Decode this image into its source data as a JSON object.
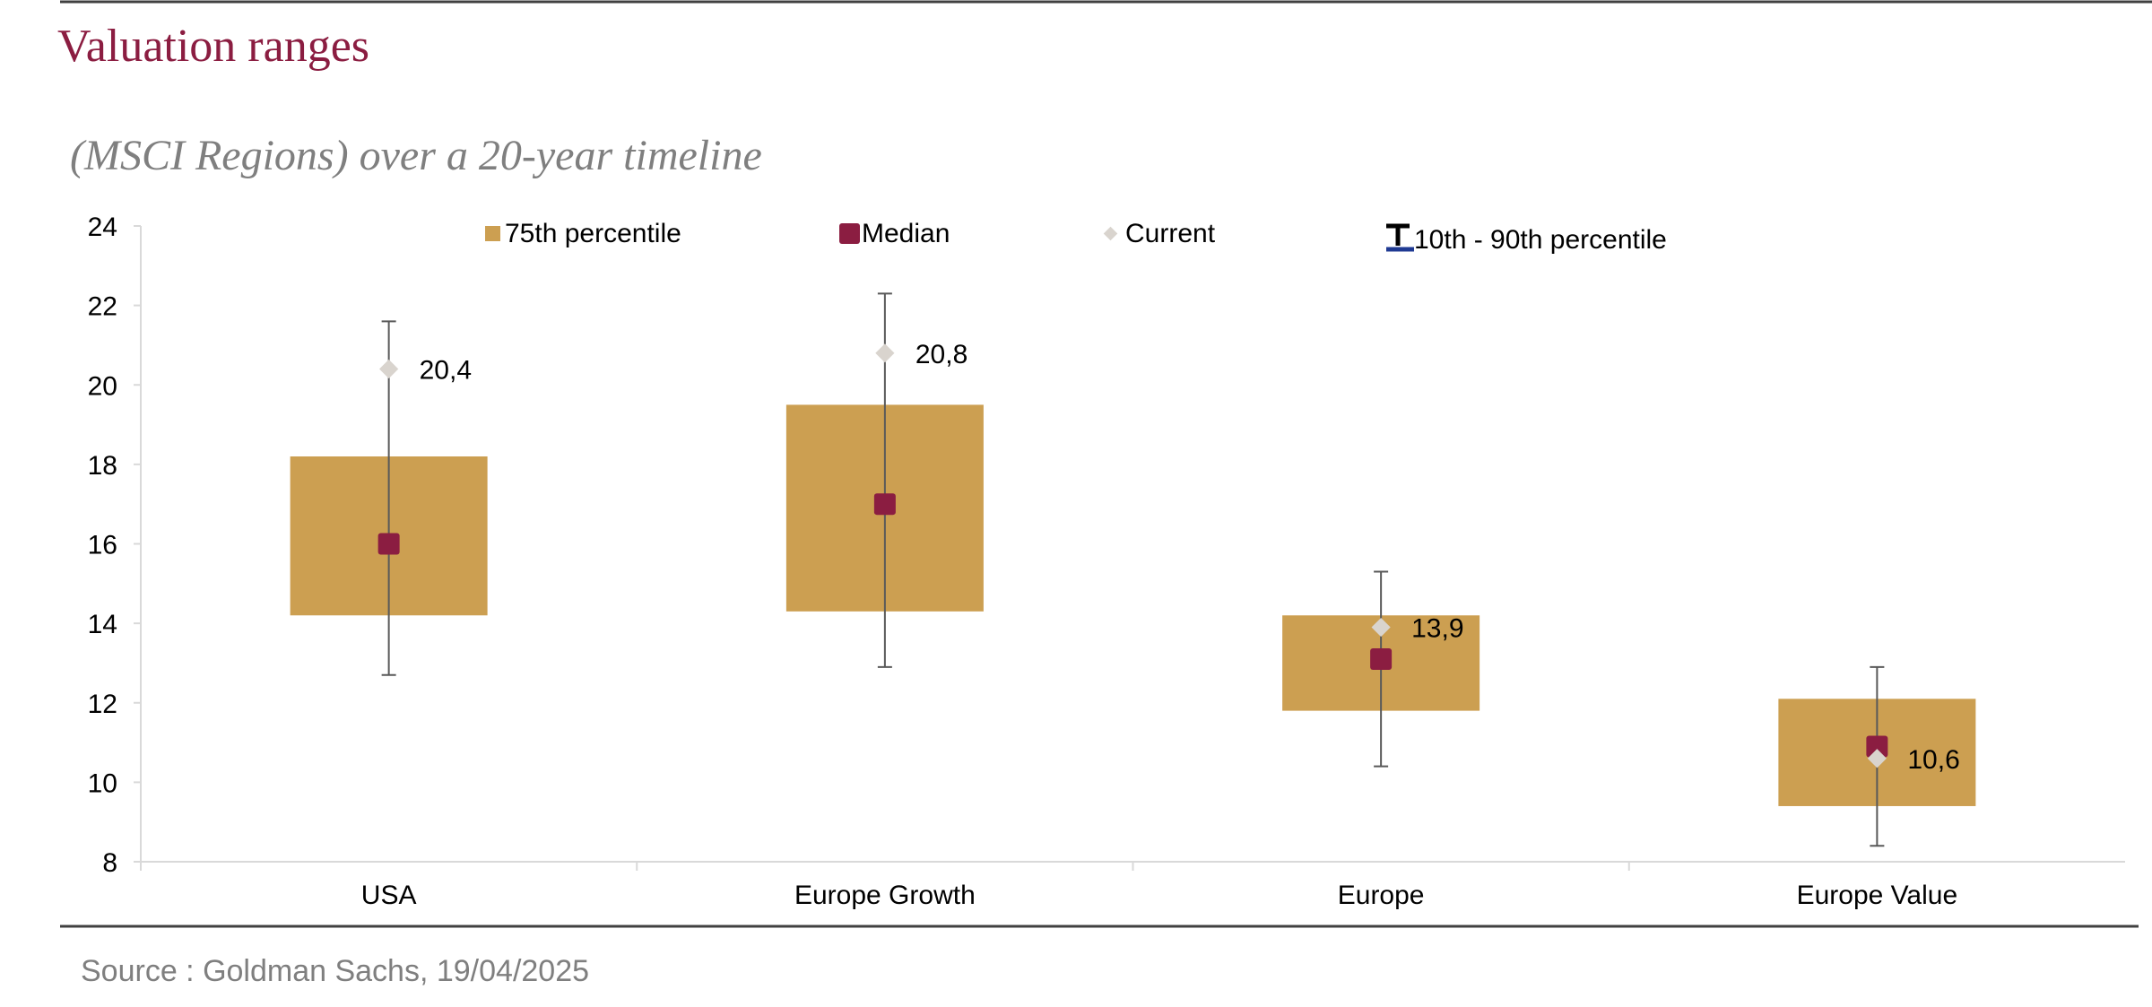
{
  "header": {
    "title": "Valuation ranges"
  },
  "chart_data": {
    "type": "box",
    "title": "",
    "subtitle": "(MSCI Regions) over a 20-year timeline",
    "xlabel": "",
    "ylabel": "",
    "categories": [
      "USA",
      "Europe Growth",
      "Europe",
      "Europe Value"
    ],
    "ylim": [
      8,
      24
    ],
    "yticks": [
      8,
      10,
      12,
      14,
      16,
      18,
      20,
      22,
      24
    ],
    "legend_position": "top",
    "grid": false,
    "legend": {
      "box": "75th percentile",
      "median": "Median",
      "current": "Current",
      "whisker": "10th - 90th percentile"
    },
    "series": {
      "p10": [
        12.7,
        12.9,
        10.4,
        8.4
      ],
      "p25": [
        14.2,
        14.3,
        11.8,
        9.4
      ],
      "median": [
        16.0,
        17.0,
        13.1,
        10.9
      ],
      "p75": [
        18.2,
        19.5,
        14.2,
        12.1
      ],
      "p90": [
        21.6,
        22.3,
        15.3,
        12.9
      ],
      "current": [
        20.4,
        20.8,
        13.9,
        10.6
      ]
    },
    "current_labels": [
      "20,4",
      "20,8",
      "13,9",
      "10,6"
    ],
    "colors": {
      "box": "#CC9F51",
      "median": "#8B1D41",
      "current": "#D9D4CE",
      "whisker": "#595959",
      "whisker_legend_bar": "#1F3A93",
      "axis": "#D9D9D9"
    }
  },
  "footer": {
    "source": "Source : Goldman Sachs, 19/04/2025"
  }
}
